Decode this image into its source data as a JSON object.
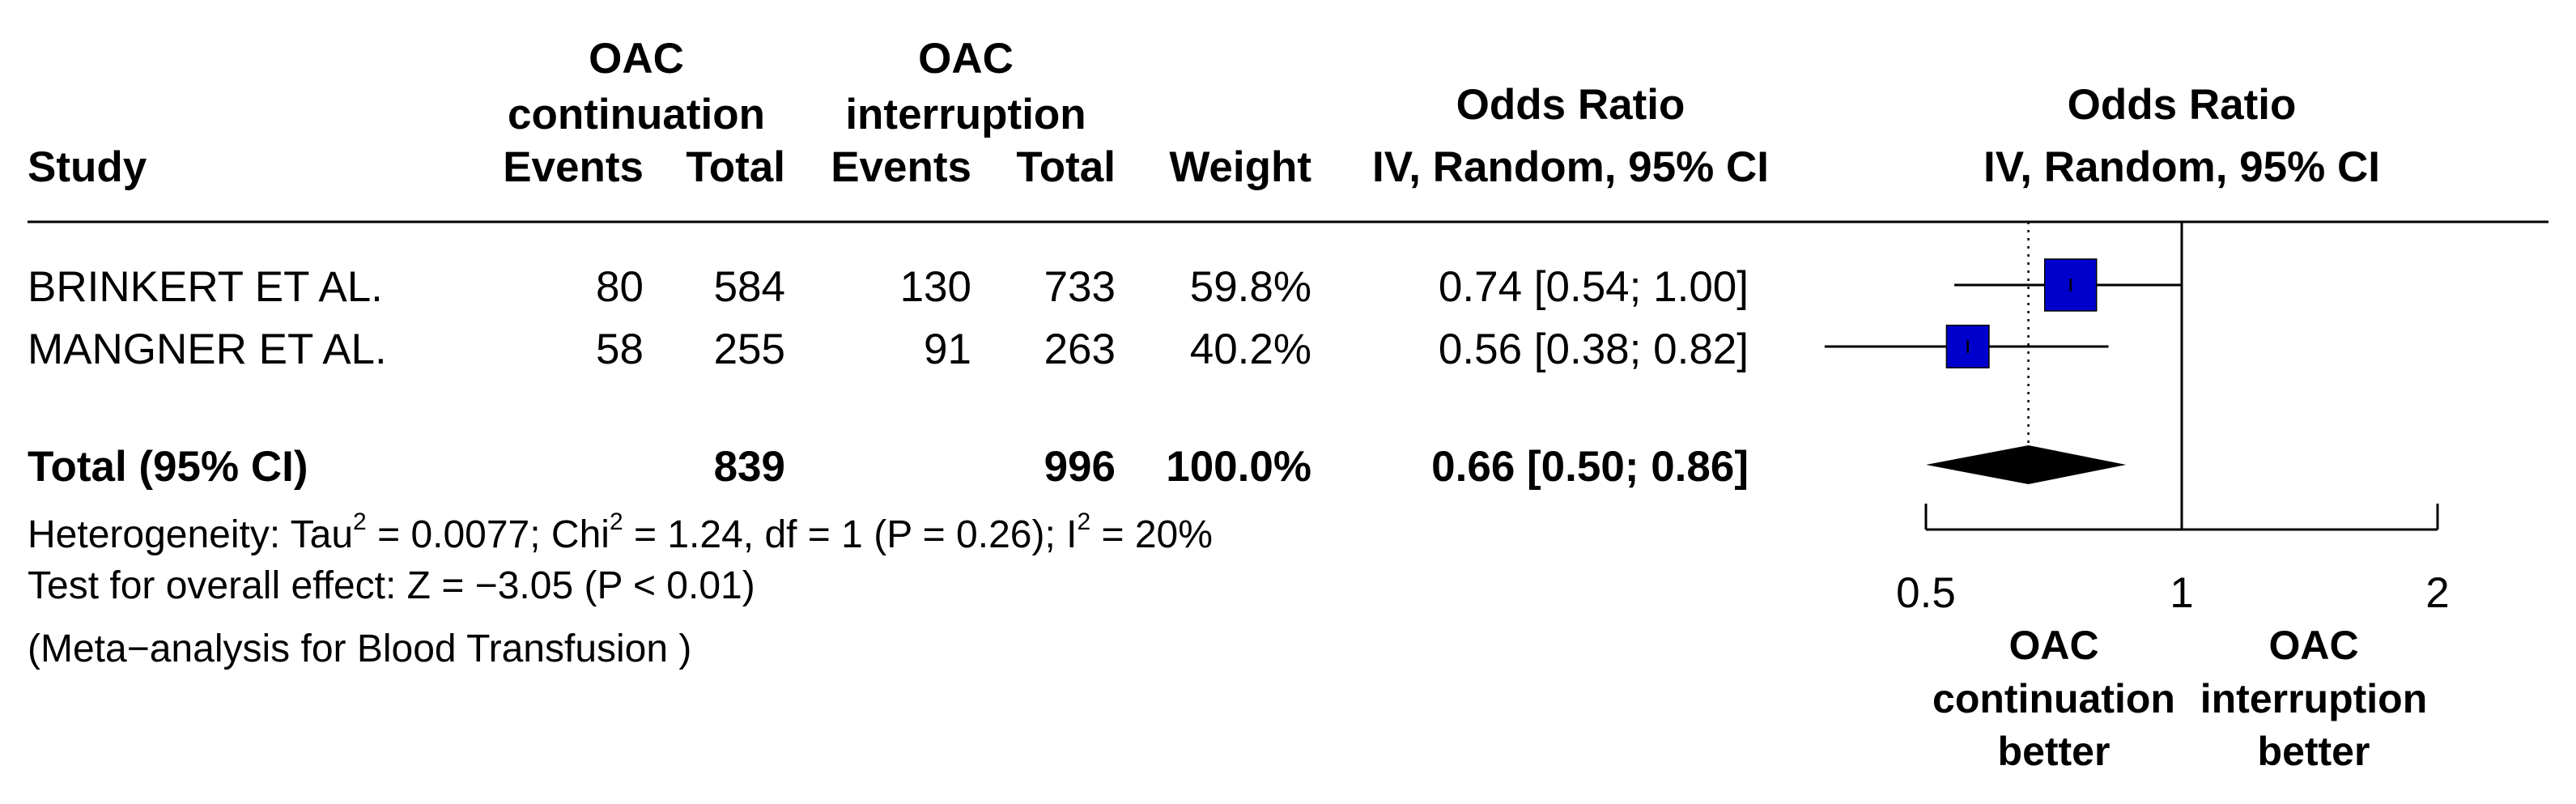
{
  "table": {
    "group_labels": [
      {
        "line1": "OAC",
        "line2": "continuation"
      },
      {
        "line1": "OAC",
        "line2": "interruption"
      }
    ],
    "columns": {
      "study": "Study",
      "events1": "Events",
      "total1": "Total",
      "events2": "Events",
      "total2": "Total",
      "weight": "Weight",
      "or_line1": "Odds Ratio",
      "or_line2": "IV, Random, 95% CI"
    },
    "plot_header": {
      "line1": "Odds Ratio",
      "line2": "IV, Random, 95% CI"
    },
    "rows": [
      {
        "study": "BRINKERT ET AL.",
        "events1": "80",
        "total1": "584",
        "events2": "130",
        "total2": "733",
        "weight": "59.8%",
        "or": "0.74 [0.54; 1.00]"
      },
      {
        "study": "MANGNER ET AL.",
        "events1": "58",
        "total1": "255",
        "events2": "91",
        "total2": "263",
        "weight": "40.2%",
        "or": "0.56 [0.38; 0.82]"
      }
    ],
    "total": {
      "study": "Total (95% CI)",
      "total1": "839",
      "total2": "996",
      "weight": "100.0%",
      "or": "0.66 [0.50; 0.86]"
    },
    "heterogeneity": {
      "prefix": "Heterogeneity: Tau",
      "sup1": "2",
      "mid1": " = 0.0077; Chi",
      "sup2": "2",
      "mid2": " = 1.24, df = 1 (P = 0.26); I",
      "sup3": "2",
      "end": " = 20%"
    },
    "overall_effect": "Test for overall effect: Z = −3.05 (P < 0.01)",
    "note": "(Meta−analysis for Blood Transfusion )"
  },
  "chart_data": {
    "type": "forest",
    "scale": "log",
    "xlim": [
      0.5,
      2
    ],
    "xticks": [
      0.5,
      1,
      2
    ],
    "xtick_labels": [
      "0.5",
      "1",
      "2"
    ],
    "null_line": 1,
    "pooled_line": 0.66,
    "studies": [
      {
        "name": "BRINKERT ET AL.",
        "or": 0.74,
        "lower": 0.54,
        "upper": 1.0,
        "weight": 59.8
      },
      {
        "name": "MANGNER ET AL.",
        "or": 0.56,
        "lower": 0.38,
        "upper": 0.82,
        "weight": 40.2
      }
    ],
    "pooled": {
      "or": 0.66,
      "lower": 0.5,
      "upper": 0.86
    },
    "favours_left": [
      "OAC",
      "continuation",
      "better"
    ],
    "favours_right": [
      "OAC",
      "interruption",
      "better"
    ],
    "colors": {
      "square": "#0000cc",
      "diamond": "#000000"
    }
  }
}
